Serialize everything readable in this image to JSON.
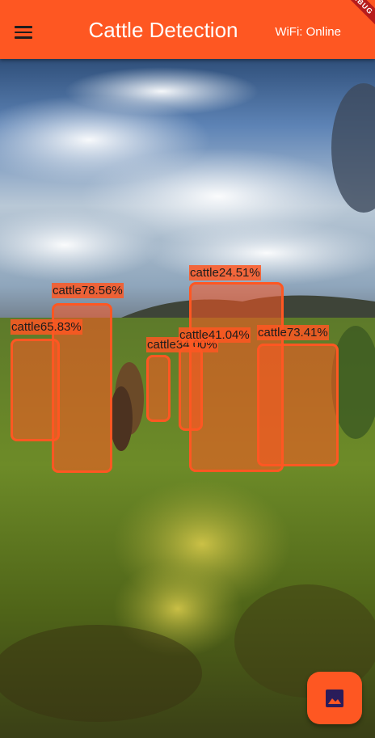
{
  "appbar": {
    "title": "Cattle Detection",
    "status": "WiFi: Online",
    "debug_banner": "DEBUG",
    "menu_icon": "hamburger-menu-icon"
  },
  "colors": {
    "primary": "#fe5722",
    "box_fill": "rgba(254,87,34,0.55)",
    "debug_banner": "#b71c1c"
  },
  "detections": [
    {
      "label": "cattle78.56%"
    },
    {
      "label": "cattle65.83%"
    },
    {
      "label": "cattle24.51%"
    },
    {
      "label": "cattle34.00%"
    },
    {
      "label": "cattle41.04%"
    },
    {
      "label": "cattle73.41%"
    }
  ],
  "fab": {
    "icon": "image-icon"
  }
}
